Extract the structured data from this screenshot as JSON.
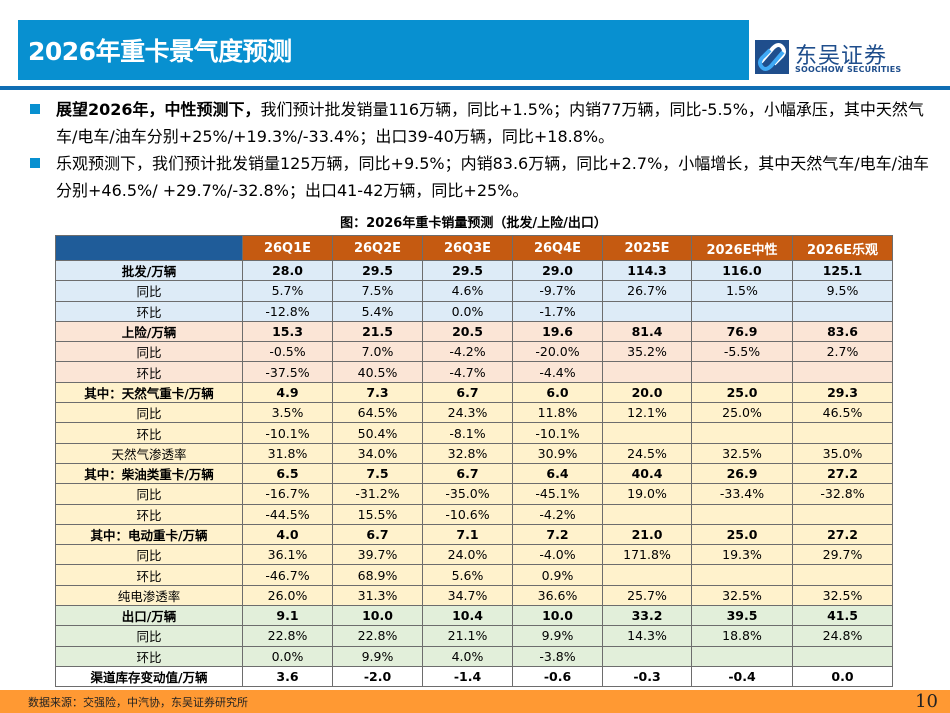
{
  "header": {
    "title": "2026年重卡景气度预测",
    "logo": {
      "cn": "东吴证券",
      "en": "SOOCHOW SECURITIES"
    }
  },
  "bullets": [
    {
      "bold": "展望2026年，中性预测下，",
      "text": "我们预计批发销量116万辆，同比+1.5%；内销77万辆，同比-5.5%，小幅承压，其中天然气车/电车/油车分别+25%/+19.3%/-33.4%；出口39-40万辆，同比+18.8%。"
    },
    {
      "bold": "",
      "text": "乐观预测下，我们预计批发销量125万辆，同比+9.5%；内销83.6万辆，同比+2.7%，小幅增长，其中天然气车/电车/油车分别+46.5%/ +29.7%/-32.8%；出口41-42万辆，同比+25%。"
    }
  ],
  "table": {
    "caption": "图：2026年重卡销量预测（批发/上险/出口）",
    "columns": [
      "",
      "26Q1E",
      "26Q2E",
      "26Q3E",
      "26Q4E",
      "2025E",
      "2026E中性",
      "2026E乐观"
    ],
    "rows": [
      {
        "label": "批发/万辆",
        "type": "main",
        "group": "blue",
        "values": [
          "28.0",
          "29.5",
          "29.5",
          "29.0",
          "114.3",
          "116.0",
          "125.1"
        ]
      },
      {
        "label": "同比",
        "type": "sub",
        "group": "blue",
        "values": [
          "5.7%",
          "7.5%",
          "4.6%",
          "-9.7%",
          "26.7%",
          "1.5%",
          "9.5%"
        ]
      },
      {
        "label": "环比",
        "type": "sub",
        "group": "blue",
        "values": [
          "-12.8%",
          "5.4%",
          "0.0%",
          "-1.7%",
          "",
          "",
          ""
        ]
      },
      {
        "label": "上险/万辆",
        "type": "main",
        "group": "pink",
        "values": [
          "15.3",
          "21.5",
          "20.5",
          "19.6",
          "81.4",
          "76.9",
          "83.6"
        ]
      },
      {
        "label": "同比",
        "type": "sub",
        "group": "pink",
        "values": [
          "-0.5%",
          "7.0%",
          "-4.2%",
          "-20.0%",
          "35.2%",
          "-5.5%",
          "2.7%"
        ]
      },
      {
        "label": "环比",
        "type": "sub",
        "group": "pink",
        "values": [
          "-37.5%",
          "40.5%",
          "-4.7%",
          "-4.4%",
          "",
          "",
          ""
        ]
      },
      {
        "label": "其中：天然气重卡/万辆",
        "type": "main",
        "group": "yellow",
        "values": [
          "4.9",
          "7.3",
          "6.7",
          "6.0",
          "20.0",
          "25.0",
          "29.3"
        ]
      },
      {
        "label": "同比",
        "type": "sub",
        "group": "yellow",
        "values": [
          "3.5%",
          "64.5%",
          "24.3%",
          "11.8%",
          "12.1%",
          "25.0%",
          "46.5%"
        ]
      },
      {
        "label": "环比",
        "type": "sub",
        "group": "yellow",
        "values": [
          "-10.1%",
          "50.4%",
          "-8.1%",
          "-10.1%",
          "",
          "",
          ""
        ]
      },
      {
        "label": "天然气渗透率",
        "type": "sub",
        "group": "yellow",
        "values": [
          "31.8%",
          "34.0%",
          "32.8%",
          "30.9%",
          "24.5%",
          "32.5%",
          "35.0%"
        ]
      },
      {
        "label": "其中：柴油类重卡/万辆",
        "type": "main",
        "group": "yellow",
        "values": [
          "6.5",
          "7.5",
          "6.7",
          "6.4",
          "40.4",
          "26.9",
          "27.2"
        ]
      },
      {
        "label": "同比",
        "type": "sub",
        "group": "yellow",
        "values": [
          "-16.7%",
          "-31.2%",
          "-35.0%",
          "-45.1%",
          "19.0%",
          "-33.4%",
          "-32.8%"
        ]
      },
      {
        "label": "环比",
        "type": "sub",
        "group": "yellow",
        "values": [
          "-44.5%",
          "15.5%",
          "-10.6%",
          "-4.2%",
          "",
          "",
          ""
        ]
      },
      {
        "label": "其中：电动重卡/万辆",
        "type": "main",
        "group": "yellow",
        "values": [
          "4.0",
          "6.7",
          "7.1",
          "7.2",
          "21.0",
          "25.0",
          "27.2"
        ]
      },
      {
        "label": "同比",
        "type": "sub",
        "group": "yellow",
        "values": [
          "36.1%",
          "39.7%",
          "24.0%",
          "-4.0%",
          "171.8%",
          "19.3%",
          "29.7%"
        ]
      },
      {
        "label": "环比",
        "type": "sub",
        "group": "yellow",
        "values": [
          "-46.7%",
          "68.9%",
          "5.6%",
          "0.9%",
          "",
          "",
          ""
        ]
      },
      {
        "label": "纯电渗透率",
        "type": "sub",
        "group": "yellow",
        "values": [
          "26.0%",
          "31.3%",
          "34.7%",
          "36.6%",
          "25.7%",
          "32.5%",
          "32.5%"
        ]
      },
      {
        "label": "出口/万辆",
        "type": "main",
        "group": "green",
        "values": [
          "9.1",
          "10.0",
          "10.4",
          "10.0",
          "33.2",
          "39.5",
          "41.5"
        ]
      },
      {
        "label": "同比",
        "type": "sub",
        "group": "green",
        "values": [
          "22.8%",
          "22.8%",
          "21.1%",
          "9.9%",
          "14.3%",
          "18.8%",
          "24.8%"
        ]
      },
      {
        "label": "环比",
        "type": "sub",
        "group": "green",
        "values": [
          "0.0%",
          "9.9%",
          "4.0%",
          "-3.8%",
          "",
          "",
          ""
        ]
      },
      {
        "label": "渠道库存变动值/万辆",
        "type": "main",
        "group": "white",
        "values": [
          "3.6",
          "-2.0",
          "-1.4",
          "-0.6",
          "-0.3",
          "-0.4",
          "0.0"
        ]
      }
    ]
  },
  "footer": {
    "source": "数据来源：交强险，中汽协，东吴证券研究所",
    "page": "10"
  },
  "colors": {
    "title_bar": "#0890D0",
    "rule": "#0F6EB4",
    "header_orange": "#C55A11",
    "header_corner": "#1F5C99",
    "row_blue": "#DDEBF7",
    "row_pink": "#FBE5D6",
    "row_yellow": "#FFF2CC",
    "row_green": "#E2EFDA",
    "footer": "#FF9933"
  }
}
